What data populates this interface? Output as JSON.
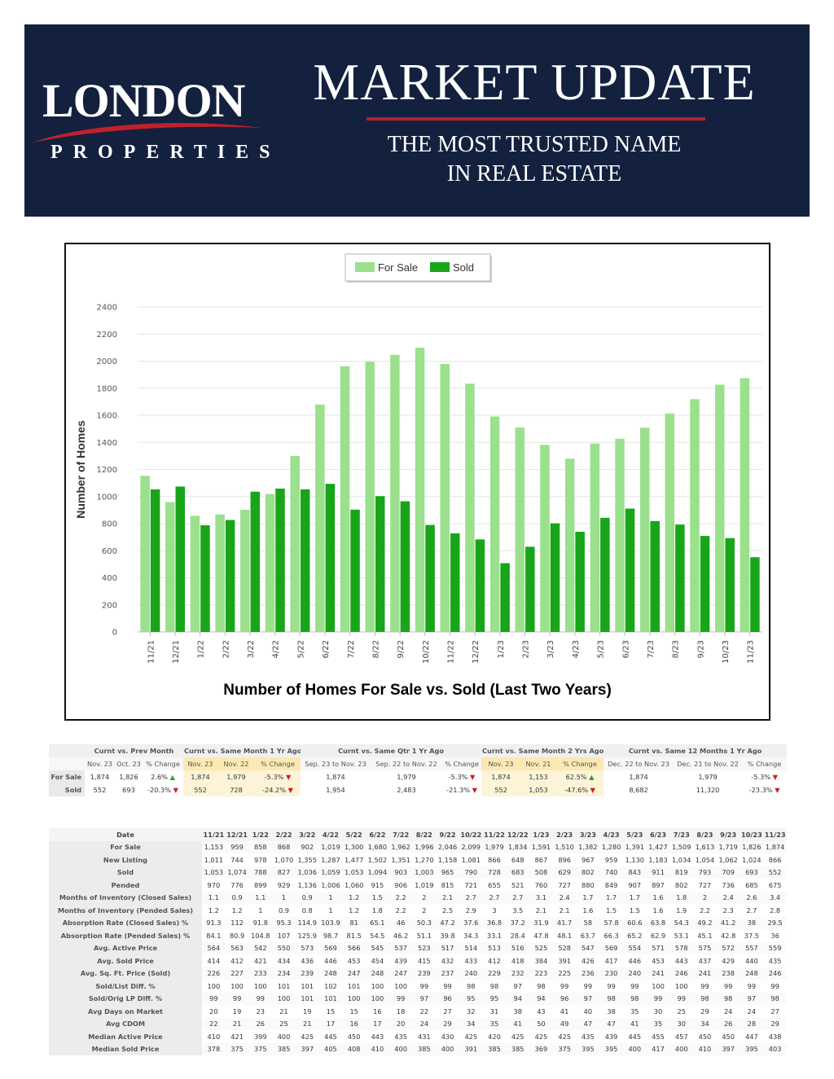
{
  "header": {
    "logo_name": "LONDON",
    "logo_sub": "PROPERTIES",
    "title": "MARKET UPDATE",
    "tagline_line1": "THE MOST TRUSTED NAME",
    "tagline_line2": "IN REAL ESTATE",
    "colors": {
      "banner": "#13213f",
      "accent_red": "#b3232b"
    }
  },
  "chart_data": {
    "type": "bar",
    "title": "Number of Homes For Sale vs. Sold (Last Two Years)",
    "xlabel": "",
    "ylabel": "Number of Homes",
    "ylim": [
      0,
      2400
    ],
    "yticks": [
      0,
      200,
      400,
      600,
      800,
      1000,
      1200,
      1400,
      1600,
      1800,
      2000,
      2200,
      2400
    ],
    "grid": true,
    "legend": "top-center",
    "categories": [
      "11/21",
      "12/21",
      "1/22",
      "2/22",
      "3/22",
      "4/22",
      "5/22",
      "6/22",
      "7/22",
      "8/22",
      "9/22",
      "10/22",
      "11/22",
      "12/22",
      "1/23",
      "2/23",
      "3/23",
      "4/23",
      "5/23",
      "6/23",
      "7/23",
      "8/23",
      "9/23",
      "10/23",
      "11/23"
    ],
    "series": [
      {
        "name": "For Sale",
        "color": "#9be08c",
        "values": [
          1153,
          959,
          858,
          868,
          902,
          1019,
          1300,
          1680,
          1962,
          1996,
          2046,
          2099,
          1979,
          1834,
          1591,
          1510,
          1382,
          1280,
          1391,
          1427,
          1509,
          1613,
          1719,
          1826,
          1874
        ]
      },
      {
        "name": "Sold",
        "color": "#19a519",
        "values": [
          1053,
          1074,
          788,
          827,
          1036,
          1059,
          1053,
          1094,
          903,
          1003,
          965,
          790,
          728,
          683,
          508,
          629,
          802,
          740,
          843,
          911,
          819,
          793,
          709,
          693,
          552
        ]
      }
    ]
  },
  "summary": {
    "groups": [
      "Curnt vs. Prev Month",
      "Curnt vs. Same Month 1 Yr Ago",
      "Curnt vs. Same Qtr 1 Yr Ago",
      "Curnt vs. Same Month 2 Yrs Ago",
      "Curnt vs. Same 12 Months 1 Yr Ago"
    ],
    "headers": [
      "Nov. 23",
      "Oct. 23",
      "% Change",
      "Nov. 23",
      "Nov. 22",
      "% Change",
      "Sep. 23 to Nov. 23",
      "Sep. 22 to Nov. 22",
      "% Change",
      "Nov. 23",
      "Nov. 21",
      "% Change",
      "Dec. 22 to Nov. 23",
      "Dec. 21 to Nov. 22",
      "% Change"
    ],
    "rows": [
      {
        "label": "For Sale",
        "cells": [
          "1,874",
          "1,826",
          "2.6% ▲",
          "1,874",
          "1,979",
          "-5.3% ▼",
          "1,874",
          "1,979",
          "-5.3% ▼",
          "1,874",
          "1,153",
          "62.5% ▲",
          "1,874",
          "1,979",
          "-5.3% ▼"
        ]
      },
      {
        "label": "Sold",
        "cells": [
          "552",
          "693",
          "-20.3% ▼",
          "552",
          "728",
          "-24.2% ▼",
          "1,954",
          "2,483",
          "-21.3% ▼",
          "552",
          "1,053",
          "-47.6% ▼",
          "8,682",
          "11,320",
          "-23.3% ▼"
        ]
      }
    ]
  },
  "details": {
    "date_label": "Date",
    "months": [
      "11/21",
      "12/21",
      "1/22",
      "2/22",
      "3/22",
      "4/22",
      "5/22",
      "6/22",
      "7/22",
      "8/22",
      "9/22",
      "10/22",
      "11/22",
      "12/22",
      "1/23",
      "2/23",
      "3/23",
      "4/23",
      "5/23",
      "6/23",
      "7/23",
      "8/23",
      "9/23",
      "10/23",
      "11/23"
    ],
    "rows": [
      {
        "label": "For Sale",
        "values": [
          "1,153",
          "959",
          "858",
          "868",
          "902",
          "1,019",
          "1,300",
          "1,680",
          "1,962",
          "1,996",
          "2,046",
          "2,099",
          "1,979",
          "1,834",
          "1,591",
          "1,510",
          "1,382",
          "1,280",
          "1,391",
          "1,427",
          "1,509",
          "1,613",
          "1,719",
          "1,826",
          "1,874"
        ]
      },
      {
        "label": "New Listing",
        "values": [
          "1,011",
          "744",
          "978",
          "1,070",
          "1,355",
          "1,287",
          "1,477",
          "1,502",
          "1,351",
          "1,270",
          "1,158",
          "1,081",
          "866",
          "648",
          "867",
          "896",
          "967",
          "959",
          "1,130",
          "1,183",
          "1,034",
          "1,054",
          "1,062",
          "1,024",
          "866"
        ]
      },
      {
        "label": "Sold",
        "values": [
          "1,053",
          "1,074",
          "788",
          "827",
          "1,036",
          "1,059",
          "1,053",
          "1,094",
          "903",
          "1,003",
          "965",
          "790",
          "728",
          "683",
          "508",
          "629",
          "802",
          "740",
          "843",
          "911",
          "819",
          "793",
          "709",
          "693",
          "552"
        ]
      },
      {
        "label": "Pended",
        "values": [
          "970",
          "776",
          "899",
          "929",
          "1,136",
          "1,006",
          "1,060",
          "915",
          "906",
          "1,019",
          "815",
          "721",
          "655",
          "521",
          "760",
          "727",
          "880",
          "849",
          "907",
          "897",
          "802",
          "727",
          "736",
          "685",
          "675"
        ]
      },
      {
        "label": "Months of Inventory (Closed Sales)",
        "values": [
          "1.1",
          "0.9",
          "1.1",
          "1",
          "0.9",
          "1",
          "1.2",
          "1.5",
          "2.2",
          "2",
          "2.1",
          "2.7",
          "2.7",
          "2.7",
          "3.1",
          "2.4",
          "1.7",
          "1.7",
          "1.7",
          "1.6",
          "1.8",
          "2",
          "2.4",
          "2.6",
          "3.4"
        ]
      },
      {
        "label": "Months of Inventory (Pended Sales)",
        "values": [
          "1.2",
          "1.2",
          "1",
          "0.9",
          "0.8",
          "1",
          "1.2",
          "1.8",
          "2.2",
          "2",
          "2.5",
          "2.9",
          "3",
          "3.5",
          "2.1",
          "2.1",
          "1.6",
          "1.5",
          "1.5",
          "1.6",
          "1.9",
          "2.2",
          "2.3",
          "2.7",
          "2.8"
        ]
      },
      {
        "label": "Absorption Rate (Closed Sales) %",
        "values": [
          "91.3",
          "112",
          "91.8",
          "95.3",
          "114.9",
          "103.9",
          "81",
          "65.1",
          "46",
          "50.3",
          "47.2",
          "37.6",
          "36.8",
          "37.2",
          "31.9",
          "41.7",
          "58",
          "57.8",
          "60.6",
          "63.8",
          "54.3",
          "49.2",
          "41.2",
          "38",
          "29.5"
        ]
      },
      {
        "label": "Absorption Rate (Pended Sales) %",
        "values": [
          "84.1",
          "80.9",
          "104.8",
          "107",
          "125.9",
          "98.7",
          "81.5",
          "54.5",
          "46.2",
          "51.1",
          "39.8",
          "34.3",
          "33.1",
          "28.4",
          "47.8",
          "48.1",
          "63.7",
          "66.3",
          "65.2",
          "62.9",
          "53.1",
          "45.1",
          "42.8",
          "37.5",
          "36"
        ]
      },
      {
        "label": "Avg. Active Price",
        "values": [
          "564",
          "563",
          "542",
          "550",
          "573",
          "569",
          "566",
          "545",
          "537",
          "523",
          "517",
          "514",
          "513",
          "516",
          "525",
          "528",
          "547",
          "569",
          "554",
          "571",
          "578",
          "575",
          "572",
          "557",
          "559"
        ]
      },
      {
        "label": "Avg. Sold Price",
        "values": [
          "414",
          "412",
          "421",
          "434",
          "436",
          "446",
          "453",
          "454",
          "439",
          "415",
          "432",
          "433",
          "412",
          "418",
          "384",
          "391",
          "426",
          "417",
          "446",
          "453",
          "443",
          "437",
          "429",
          "440",
          "435"
        ]
      },
      {
        "label": "Avg. Sq. Ft. Price (Sold)",
        "values": [
          "226",
          "227",
          "233",
          "234",
          "239",
          "248",
          "247",
          "248",
          "247",
          "239",
          "237",
          "240",
          "229",
          "232",
          "223",
          "225",
          "236",
          "230",
          "240",
          "241",
          "246",
          "241",
          "238",
          "248",
          "246"
        ]
      },
      {
        "label": "Sold/List Diff. %",
        "values": [
          "100",
          "100",
          "100",
          "101",
          "101",
          "102",
          "101",
          "100",
          "100",
          "99",
          "99",
          "98",
          "98",
          "97",
          "98",
          "99",
          "99",
          "99",
          "99",
          "100",
          "100",
          "99",
          "99",
          "99",
          "99"
        ]
      },
      {
        "label": "Sold/Orig LP Diff. %",
        "values": [
          "99",
          "99",
          "99",
          "100",
          "101",
          "101",
          "100",
          "100",
          "99",
          "97",
          "96",
          "95",
          "95",
          "94",
          "94",
          "96",
          "97",
          "98",
          "98",
          "99",
          "99",
          "98",
          "98",
          "97",
          "98"
        ]
      },
      {
        "label": "Avg Days on Market",
        "values": [
          "20",
          "19",
          "23",
          "21",
          "19",
          "15",
          "15",
          "16",
          "18",
          "22",
          "27",
          "32",
          "31",
          "38",
          "43",
          "41",
          "40",
          "38",
          "35",
          "30",
          "25",
          "29",
          "24",
          "24",
          "27"
        ]
      },
      {
        "label": "Avg CDOM",
        "values": [
          "22",
          "21",
          "26",
          "25",
          "21",
          "17",
          "16",
          "17",
          "20",
          "24",
          "29",
          "34",
          "35",
          "41",
          "50",
          "49",
          "47",
          "47",
          "41",
          "35",
          "30",
          "34",
          "26",
          "28",
          "29"
        ]
      },
      {
        "label": "Median Active Price",
        "values": [
          "410",
          "421",
          "399",
          "400",
          "425",
          "445",
          "450",
          "443",
          "435",
          "431",
          "430",
          "425",
          "420",
          "425",
          "425",
          "425",
          "435",
          "439",
          "445",
          "455",
          "457",
          "450",
          "450",
          "447",
          "438"
        ]
      },
      {
        "label": "Median Sold Price",
        "values": [
          "378",
          "375",
          "375",
          "385",
          "397",
          "405",
          "408",
          "410",
          "400",
          "385",
          "400",
          "391",
          "385",
          "385",
          "369",
          "375",
          "395",
          "395",
          "400",
          "417",
          "400",
          "410",
          "397",
          "395",
          "403"
        ]
      }
    ]
  }
}
